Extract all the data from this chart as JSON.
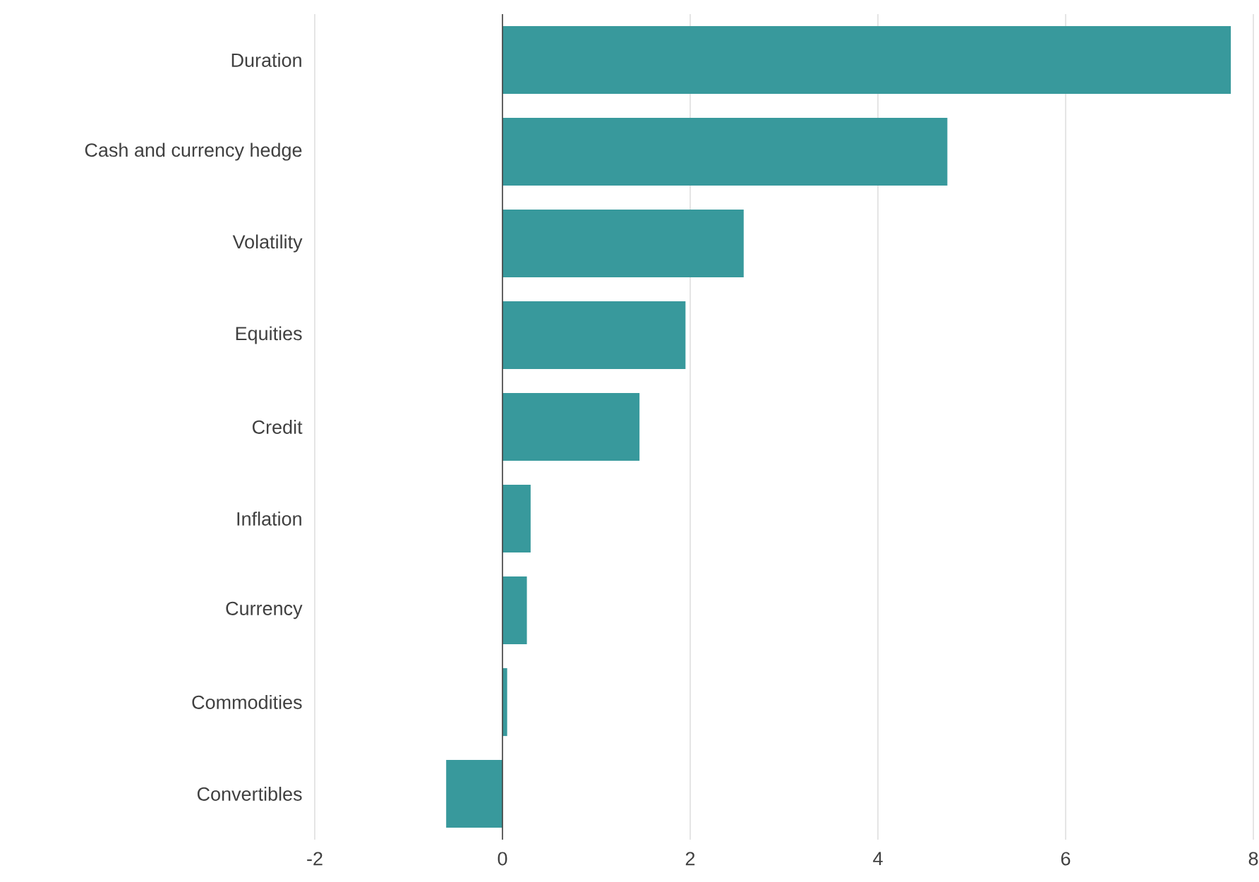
{
  "chart_data": {
    "type": "bar",
    "orientation": "horizontal",
    "categories": [
      "Duration",
      "Cash and currency hedge",
      "Volatility",
      "Equities",
      "Credit",
      "Inflation",
      "Currency",
      "Commodities",
      "Convertibles"
    ],
    "values": [
      7.76,
      4.74,
      2.57,
      1.95,
      1.46,
      0.3,
      0.26,
      0.05,
      -0.6
    ],
    "color": "#38999c",
    "xlim": [
      -2,
      8
    ],
    "xticks": [
      -2,
      0,
      2,
      4,
      6,
      8
    ],
    "grid": "x"
  }
}
